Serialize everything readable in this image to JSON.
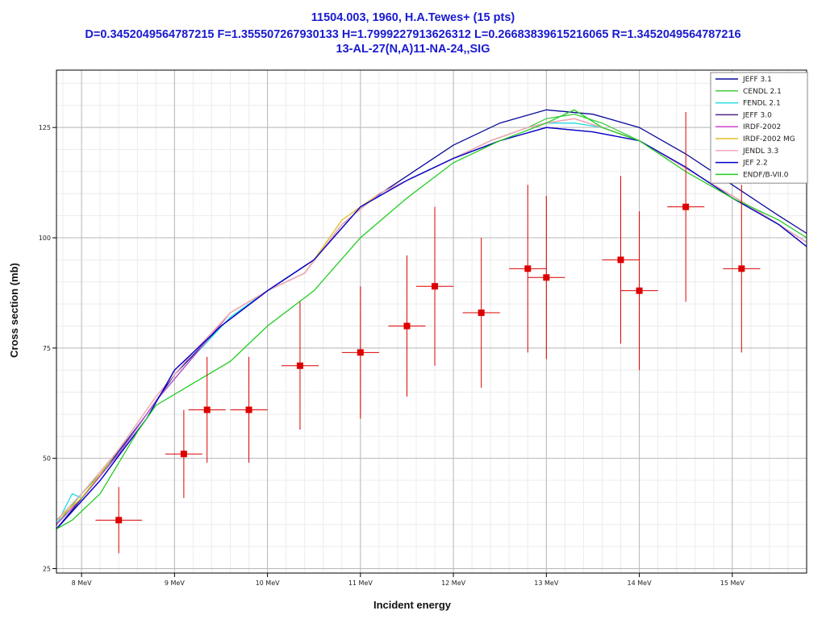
{
  "chart_data": {
    "type": "line",
    "title": "11504.003, 1960, H.A.Tewes+ (15 pts)",
    "subtitle": "D=0.3452049564787215 F=1.355507267930133 H=1.7999227913626312 L=0.26683839615216065 R=1.3452049564787216",
    "reaction": "13-AL-27(N,A)11-NA-24,,SIG",
    "xlabel": "Incident energy",
    "ylabel": "Cross section (mb)",
    "xlim": [
      7.73,
      15.8
    ],
    "ylim": [
      24,
      138
    ],
    "x_ticks": [
      {
        "v": 8,
        "label": "8 MeV"
      },
      {
        "v": 9,
        "label": "9 MeV"
      },
      {
        "v": 10,
        "label": "10 MeV"
      },
      {
        "v": 11,
        "label": "11 MeV"
      },
      {
        "v": 12,
        "label": "12 MeV"
      },
      {
        "v": 13,
        "label": "13 MeV"
      },
      {
        "v": 14,
        "label": "14 MeV"
      },
      {
        "v": 15,
        "label": "15 MeV"
      }
    ],
    "y_ticks": [
      {
        "v": 25,
        "label": "25"
      },
      {
        "v": 50,
        "label": "50"
      },
      {
        "v": 75,
        "label": "75"
      },
      {
        "v": 100,
        "label": "100"
      },
      {
        "v": 125,
        "label": "125"
      }
    ],
    "grid": true,
    "legend_position": "top-right",
    "series": [
      {
        "name": "JEFF 3.1",
        "color": "#0a0a9a",
        "x": [
          7.73,
          8.2,
          8.7,
          9.0,
          9.5,
          10.0,
          10.5,
          11.0,
          11.5,
          12.0,
          12.5,
          13.0,
          13.5,
          14.0,
          14.5,
          15.0,
          15.5,
          15.8
        ],
        "y": [
          34,
          46,
          60,
          69,
          80,
          88,
          95,
          107,
          114,
          121,
          126,
          129,
          128,
          125,
          119,
          112,
          105,
          101
        ]
      },
      {
        "name": "CENDL 2.1",
        "color": "#44cc44",
        "x": [
          7.73,
          8.0,
          8.4,
          8.8,
          9.2,
          9.6,
          10.0,
          10.4,
          10.8,
          11.2,
          11.6,
          12.0,
          12.4,
          12.8,
          13.0,
          13.3,
          13.6,
          14.0,
          14.4,
          14.8,
          15.2,
          15.5,
          15.8
        ],
        "y": [
          35,
          42,
          51,
          63,
          73,
          83,
          88,
          92,
          103,
          110,
          114,
          118,
          122,
          125,
          127,
          128,
          126,
          122,
          117,
          112,
          107,
          103,
          99
        ]
      },
      {
        "name": "FENDL 2.1",
        "color": "#22dddd",
        "x": [
          7.73,
          7.9,
          8.0,
          8.4,
          8.8,
          9.2,
          9.6,
          10.0,
          10.4,
          10.8,
          11.2,
          11.6,
          12.0,
          12.4,
          12.8,
          13.0,
          13.3,
          13.6,
          14.0,
          14.4,
          14.8,
          15.2,
          15.5,
          15.8
        ],
        "y": [
          35,
          42,
          41,
          51,
          63,
          73,
          82,
          88,
          92,
          103,
          110,
          114,
          118,
          122,
          125,
          126,
          126,
          125,
          122,
          117,
          112,
          107,
          103,
          99
        ]
      },
      {
        "name": "JEFF 3.0",
        "color": "#552288",
        "x": [
          7.73,
          8.2,
          8.7,
          9.0,
          9.5,
          10.0,
          10.5,
          11.0,
          11.5,
          12.0,
          12.5,
          13.0,
          13.5,
          14.0,
          14.5,
          15.0,
          15.5,
          15.8
        ],
        "y": [
          34,
          45,
          59,
          70,
          80,
          88,
          95,
          107,
          113,
          118,
          122,
          125,
          124,
          122,
          116,
          109,
          103,
          98
        ]
      },
      {
        "name": "IRDF-2002",
        "color": "#cc44cc",
        "x": [
          7.73,
          8.0,
          8.4,
          8.8,
          9.2,
          9.6,
          10.0,
          10.4,
          10.8,
          11.2,
          11.6,
          12.0,
          12.4,
          12.8,
          13.0,
          13.3,
          13.6,
          14.0,
          14.4,
          14.8,
          15.2,
          15.5,
          15.8
        ],
        "y": [
          35,
          41,
          51,
          63,
          73,
          83,
          88,
          92,
          103,
          110,
          114,
          118,
          122,
          125,
          126,
          127,
          125,
          122,
          117,
          112,
          107,
          103,
          99
        ]
      },
      {
        "name": "IRDF-2002 MG",
        "color": "#e0c020",
        "x": [
          7.73,
          8.0,
          8.4,
          8.8,
          9.2,
          9.6,
          10.0,
          10.4,
          10.8,
          11.2,
          11.6,
          12.0,
          12.4,
          12.8,
          13.0,
          13.3,
          13.6,
          14.0,
          14.4,
          14.8,
          15.2,
          15.5,
          15.8
        ],
        "y": [
          36,
          41,
          52,
          64,
          74,
          83,
          88,
          92,
          104,
          110,
          114,
          118,
          122,
          125,
          126,
          127,
          125,
          122,
          117,
          112,
          107,
          103,
          98
        ]
      },
      {
        "name": "JENDL 3.3",
        "color": "#f2a8c0",
        "x": [
          7.73,
          8.0,
          8.4,
          8.8,
          9.2,
          9.6,
          10.0,
          10.4,
          10.8,
          11.2,
          11.6,
          12.0,
          12.4,
          12.8,
          13.0,
          13.3,
          13.6,
          14.0,
          14.4,
          14.8,
          15.2,
          15.5,
          15.8
        ],
        "y": [
          36,
          42,
          52,
          64,
          74,
          83,
          88,
          92,
          103,
          110,
          114,
          118,
          122,
          125,
          126,
          127,
          125,
          122,
          117,
          112,
          107,
          103,
          99
        ]
      },
      {
        "name": "JEF 2.2",
        "color": "#0000cc",
        "x": [
          7.73,
          8.2,
          8.7,
          9.0,
          9.5,
          10.0,
          10.5,
          11.0,
          11.5,
          12.0,
          12.5,
          13.0,
          13.5,
          14.0,
          14.5,
          15.0,
          15.5,
          15.8
        ],
        "y": [
          34,
          45,
          59,
          70,
          80,
          88,
          95,
          107,
          113,
          118,
          122,
          125,
          124,
          122,
          116,
          109,
          103,
          98
        ]
      },
      {
        "name": "ENDF/B-VII.0",
        "color": "#22cc22",
        "x": [
          7.73,
          7.9,
          8.2,
          8.6,
          8.8,
          9.2,
          9.6,
          10.0,
          10.5,
          11.0,
          11.5,
          12.0,
          12.5,
          13.0,
          13.3,
          13.6,
          14.0,
          14.5,
          15.0,
          15.5,
          15.8
        ],
        "y": [
          34,
          36,
          42,
          56,
          62,
          67,
          72,
          80,
          88,
          100,
          109,
          117,
          122,
          126,
          129,
          125,
          122,
          115,
          109,
          104,
          100
        ]
      }
    ],
    "experimental": {
      "color": "#dd0000",
      "points": [
        {
          "x": 8.4,
          "y": 36,
          "xerr": 0.25,
          "yerr": 7.5
        },
        {
          "x": 9.1,
          "y": 51,
          "xerr": 0.2,
          "yerr": 10
        },
        {
          "x": 9.35,
          "y": 61,
          "xerr": 0.2,
          "yerr": 12
        },
        {
          "x": 9.8,
          "y": 61,
          "xerr": 0.2,
          "yerr": 12
        },
        {
          "x": 10.35,
          "y": 71,
          "xerr": 0.2,
          "yerr": 14.5
        },
        {
          "x": 11.0,
          "y": 74,
          "xerr": 0.2,
          "yerr": 15
        },
        {
          "x": 11.5,
          "y": 80,
          "xerr": 0.2,
          "yerr": 16
        },
        {
          "x": 11.8,
          "y": 89,
          "xerr": 0.2,
          "yerr": 18
        },
        {
          "x": 12.3,
          "y": 83,
          "xerr": 0.2,
          "yerr": 17
        },
        {
          "x": 12.8,
          "y": 93,
          "xerr": 0.2,
          "yerr": 19
        },
        {
          "x": 13.0,
          "y": 91,
          "xerr": 0.2,
          "yerr": 18.5
        },
        {
          "x": 13.8,
          "y": 95,
          "xerr": 0.2,
          "yerr": 19
        },
        {
          "x": 14.0,
          "y": 88,
          "xerr": 0.2,
          "yerr": 18
        },
        {
          "x": 14.5,
          "y": 107,
          "xerr": 0.2,
          "yerr": 21.5
        },
        {
          "x": 15.1,
          "y": 93,
          "xerr": 0.2,
          "yerr": 19
        }
      ]
    }
  }
}
